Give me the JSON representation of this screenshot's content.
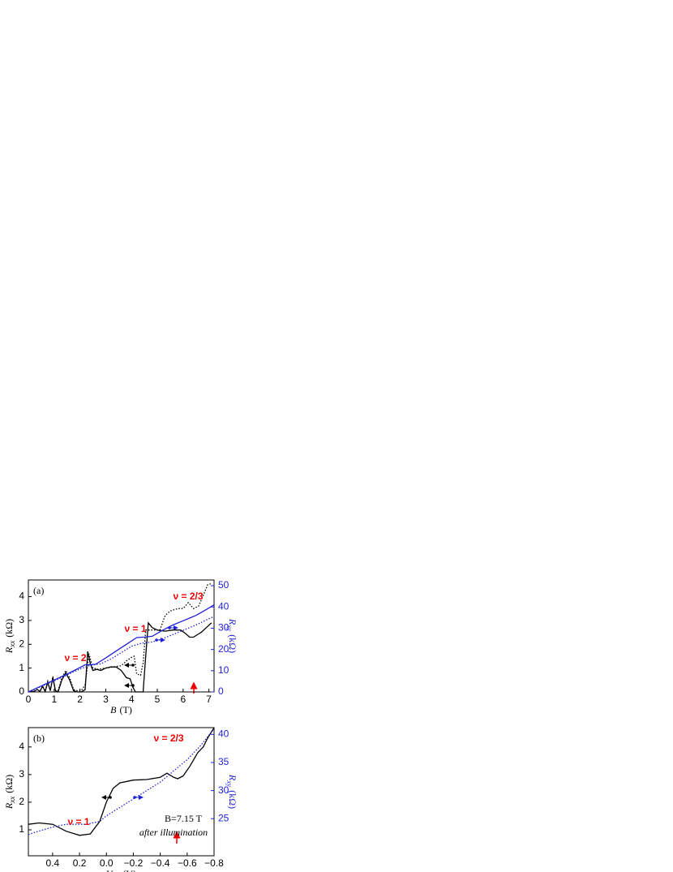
{
  "chart_data": [
    {
      "type": "line",
      "label": "(a)",
      "xlabel": {
        "symbol": "B",
        "unit": "(T)"
      },
      "ylabel": {
        "symbol": "R",
        "subscript": "xx",
        "unit": "(kΩ)"
      },
      "y2label": {
        "symbol": "R",
        "subscript": "xy",
        "unit": "(kΩ)"
      },
      "y2color": "#1f1fd6",
      "xlim": [
        0,
        7.2
      ],
      "xticks": [
        0,
        1,
        2,
        3,
        4,
        5,
        6,
        7
      ],
      "ylim": [
        0,
        4.7
      ],
      "yticks": [
        0,
        1,
        2,
        3,
        4
      ],
      "y2lim": [
        0,
        52.7
      ],
      "y2ticks": [
        0,
        10,
        20,
        30,
        40,
        50
      ],
      "annotations": [
        "ν = 2",
        "ν = 1",
        "ν = 2/3"
      ],
      "series": [
        {
          "color": "#000000",
          "dash": "solid",
          "x": [
            0,
            0.2,
            0.35,
            0.45,
            0.55,
            0.65,
            0.75,
            0.85,
            0.95,
            1.05,
            1.15,
            1.3,
            1.45,
            1.6,
            1.75,
            1.9,
            2.05,
            2.2,
            2.3,
            2.4,
            2.5,
            2.65,
            2.8,
            3.0,
            3.2,
            3.4,
            3.6,
            3.8,
            3.95,
            4.05,
            4.15,
            4.3,
            4.45,
            4.55,
            4.65,
            4.8,
            5.0,
            5.3,
            5.6,
            5.9,
            6.1,
            6.25,
            6.4,
            6.55,
            6.7,
            6.9,
            7.1
          ],
          "values": [
            0,
            0.02,
            0.1,
            0.02,
            0.25,
            0.02,
            0.4,
            0.05,
            0.6,
            0.05,
            0.0,
            0.5,
            0.8,
            0.5,
            0.05,
            0.0,
            0.0,
            0.1,
            1.7,
            1.2,
            0.9,
            0.95,
            0.9,
            1.0,
            1.05,
            1.05,
            0.9,
            0.6,
            0.55,
            0.2,
            0,
            0,
            0,
            1.5,
            2.9,
            2.7,
            2.6,
            2.55,
            2.6,
            2.6,
            2.45,
            2.3,
            2.3,
            2.4,
            2.5,
            2.7,
            2.9
          ]
        },
        {
          "color": "#000000",
          "dash": "dotted",
          "x": [
            0,
            0.2,
            0.35,
            0.45,
            0.55,
            0.65,
            0.75,
            0.85,
            0.95,
            1.05,
            1.15,
            1.3,
            1.45,
            1.6,
            1.75,
            1.9,
            2.05,
            2.2,
            2.35,
            2.5,
            2.7,
            3.0,
            3.3,
            3.6,
            3.8,
            4.0,
            4.1,
            4.2,
            4.35,
            4.45,
            4.55,
            4.7,
            4.9,
            5.1,
            5.3,
            5.5,
            5.8,
            6.0,
            6.2,
            6.4,
            6.6,
            6.8,
            6.95,
            7.1
          ],
          "values": [
            0,
            0.02,
            0.1,
            0.02,
            0.25,
            0.02,
            0.45,
            0.05,
            0.65,
            0.05,
            0.05,
            0.6,
            0.9,
            0.6,
            0.1,
            0.05,
            0.05,
            0.3,
            1.6,
            1.0,
            0.95,
            1.0,
            1.05,
            1.1,
            1.3,
            1.45,
            1.5,
            0.75,
            0.7,
            1.2,
            2.6,
            2.6,
            2.6,
            2.6,
            3.2,
            3.4,
            3.5,
            3.5,
            3.75,
            3.5,
            3.6,
            4.1,
            4.5,
            4.55
          ]
        },
        {
          "color": "#1f1fd6",
          "dash": "solid",
          "axis": "y2",
          "x": [
            0,
            0.5,
            1,
            1.5,
            2,
            2.2,
            2.6,
            3,
            3.5,
            4,
            4.2,
            4.5,
            4.8,
            5.2,
            5.6,
            6,
            6.5,
            7,
            7.2
          ],
          "values": [
            0,
            2.8,
            5.6,
            8.4,
            11.5,
            12.8,
            13,
            16,
            20,
            24,
            25.6,
            25.8,
            26.2,
            29,
            31.5,
            33.5,
            36,
            39.5,
            41
          ]
        },
        {
          "color": "#1f1fd6",
          "dash": "dotted",
          "axis": "y2",
          "x": [
            0,
            0.5,
            1,
            1.5,
            2,
            2.4,
            2.8,
            3.2,
            3.6,
            4,
            4.4,
            4.8,
            5.2,
            5.6,
            6,
            6.5,
            7,
            7.2
          ],
          "values": [
            0,
            2.6,
            5.2,
            8,
            10.8,
            12.5,
            13.2,
            15.5,
            18.5,
            21.5,
            23,
            23.5,
            25,
            27,
            29,
            31.5,
            34.5,
            35.5
          ]
        }
      ]
    },
    {
      "type": "line",
      "label": "(b)",
      "xlabel": {
        "symbol": "V",
        "subscript": "bg",
        "unit": "(V)"
      },
      "ylabel": {
        "symbol": "R",
        "subscript": "xx",
        "unit": "(kΩ)"
      },
      "y2label": {
        "symbol": "R",
        "subscript": "xy",
        "unit": "(kΩ)"
      },
      "y2color": "#1f1fd6",
      "xlim": [
        0.58,
        -0.8
      ],
      "xticks": [
        0.4,
        0.2,
        {
          "value": 0,
          "label": "0.0"
        },
        {
          "value": -0.2,
          "label": "−0.2"
        },
        {
          "value": -0.4,
          "label": "−0.4"
        },
        {
          "value": -0.6,
          "label": "−0.6"
        },
        {
          "value": -0.8,
          "label": "−0.8"
        }
      ],
      "ylim": [
        0.06,
        4.7
      ],
      "yticks": [
        1,
        2,
        3,
        4
      ],
      "y2lim": [
        18.4,
        41.2
      ],
      "y2ticks": [
        25,
        30,
        35,
        40
      ],
      "annotations": [
        "ν = 1",
        "ν = 2/3",
        "B=7.15 T",
        "after illumination"
      ],
      "series": [
        {
          "color": "#000000",
          "dash": "solid",
          "x": [
            0.58,
            0.5,
            0.4,
            0.3,
            0.2,
            0.12,
            0.05,
            0.0,
            -0.05,
            -0.1,
            -0.2,
            -0.3,
            -0.4,
            -0.45,
            -0.5,
            -0.53,
            -0.57,
            -0.62,
            -0.68,
            -0.72,
            -0.75,
            -0.8
          ],
          "values": [
            1.2,
            1.25,
            1.2,
            0.95,
            0.8,
            0.85,
            1.3,
            2.0,
            2.5,
            2.7,
            2.8,
            2.82,
            2.9,
            3.05,
            2.9,
            2.85,
            2.95,
            3.3,
            3.8,
            4.0,
            4.3,
            4.7
          ]
        },
        {
          "color": "#1f1fd6",
          "dash": "dotted",
          "axis": "y2",
          "x": [
            0.58,
            0.5,
            0.4,
            0.3,
            0.15,
            0.05,
            0.0,
            -0.2,
            -0.4,
            -0.5,
            -0.6,
            -0.7,
            -0.8
          ],
          "values": [
            22.2,
            22.8,
            23.5,
            24,
            24,
            24.5,
            25.5,
            28.5,
            31.5,
            33.5,
            35.5,
            38,
            41
          ]
        }
      ]
    }
  ]
}
